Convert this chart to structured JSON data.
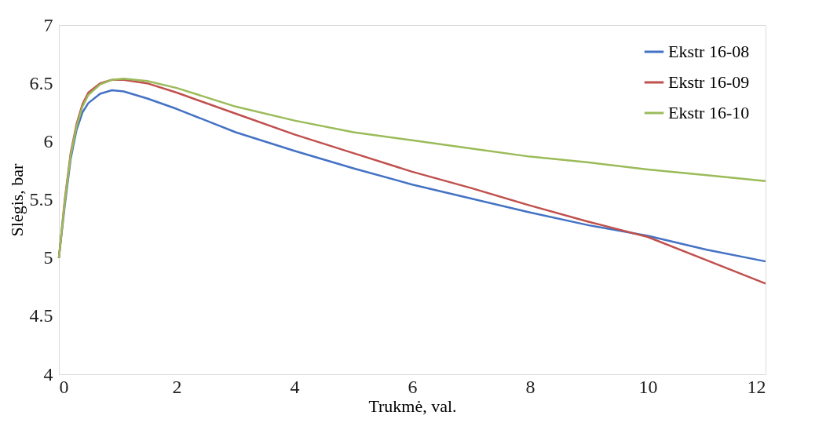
{
  "chart_data": {
    "type": "line",
    "xlabel": "Trukmė, val.",
    "ylabel": "Slėgis, bar",
    "xlim": [
      0,
      12
    ],
    "xticks": [
      0,
      2,
      4,
      6,
      8,
      10,
      12
    ],
    "ylim": [
      4,
      7
    ],
    "yticks": [
      4,
      4.5,
      5,
      5.5,
      6,
      6.5,
      7
    ],
    "grid": false,
    "legend": "top right",
    "marker": "none",
    "line_style": "solid",
    "series": [
      {
        "name": "Ekstr 16-08",
        "color": "#4472c4",
        "x": [
          0,
          0.1,
          0.2,
          0.3,
          0.4,
          0.5,
          0.7,
          0.9,
          1.1,
          1.5,
          2,
          3,
          4,
          5,
          6,
          7,
          8,
          9,
          10,
          11,
          12
        ],
        "values": [
          5.0,
          5.45,
          5.85,
          6.1,
          6.25,
          6.33,
          6.41,
          6.44,
          6.43,
          6.37,
          6.28,
          6.08,
          5.92,
          5.77,
          5.63,
          5.51,
          5.39,
          5.28,
          5.19,
          5.07,
          4.97
        ]
      },
      {
        "name": "Ekstr 16-09",
        "color": "#c0504d",
        "x": [
          0,
          0.1,
          0.2,
          0.3,
          0.4,
          0.5,
          0.7,
          0.9,
          1.1,
          1.5,
          2,
          3,
          4,
          5,
          6,
          7,
          8,
          9,
          10,
          11,
          12
        ],
        "values": [
          5.0,
          5.5,
          5.9,
          6.15,
          6.32,
          6.42,
          6.5,
          6.53,
          6.53,
          6.5,
          6.42,
          6.24,
          6.06,
          5.9,
          5.74,
          5.6,
          5.45,
          5.31,
          5.18,
          4.98,
          4.78
        ]
      },
      {
        "name": "Ekstr 16-10",
        "color": "#9bbb59",
        "x": [
          0,
          0.1,
          0.2,
          0.3,
          0.4,
          0.5,
          0.7,
          0.9,
          1.1,
          1.5,
          2,
          3,
          4,
          5,
          6,
          7,
          8,
          9,
          10,
          11,
          12
        ],
        "values": [
          5.0,
          5.48,
          5.88,
          6.13,
          6.3,
          6.4,
          6.49,
          6.53,
          6.54,
          6.52,
          6.46,
          6.3,
          6.18,
          6.08,
          6.01,
          5.94,
          5.87,
          5.82,
          5.76,
          5.71,
          5.66
        ]
      }
    ]
  }
}
